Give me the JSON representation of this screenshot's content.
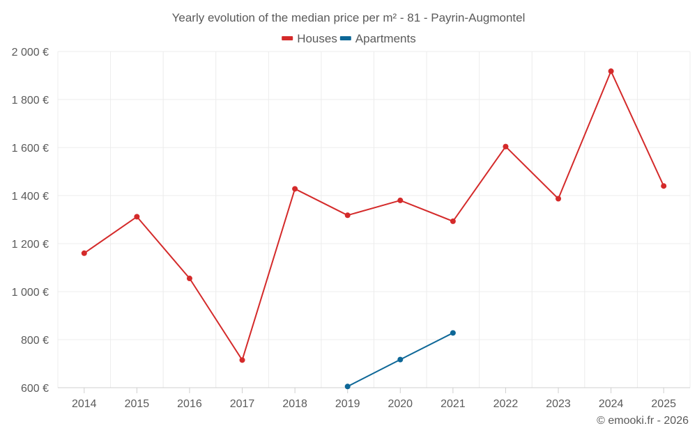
{
  "chart_data": {
    "type": "line",
    "title": "Yearly evolution of the median price per m² - 81 - Payrin-Augmontel",
    "categories": [
      "2014",
      "2015",
      "2016",
      "2017",
      "2018",
      "2019",
      "2020",
      "2021",
      "2022",
      "2023",
      "2024",
      "2025"
    ],
    "ylim": [
      600,
      2000
    ],
    "yticks": [
      600,
      800,
      1000,
      1200,
      1400,
      1600,
      1800,
      2000
    ],
    "ytick_labels": [
      "600 €",
      "800 €",
      "1 000 €",
      "1 200 €",
      "1 400 €",
      "1 600 €",
      "1 800 €",
      "2 000 €"
    ],
    "grid": true,
    "legend_position": "top-center",
    "series": [
      {
        "name": "Houses",
        "color": "#d42a2a",
        "values": [
          1160,
          1312,
          1055,
          715,
          1428,
          1318,
          1380,
          1293,
          1604,
          1387,
          1918,
          1440
        ]
      },
      {
        "name": "Apartments",
        "color": "#0d6797",
        "values": [
          null,
          null,
          null,
          null,
          null,
          605,
          717,
          828,
          null,
          null,
          null,
          null
        ]
      }
    ]
  },
  "credit": "© emooki.fr - 2026"
}
